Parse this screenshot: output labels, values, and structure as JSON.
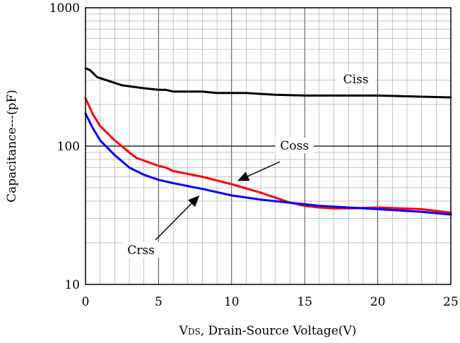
{
  "chart_data": {
    "type": "line",
    "xlabel_prefix": "V",
    "xlabel_sub": "DS",
    "xlabel_rest": ", Drain-Source Voltage(V)",
    "ylabel": "Capacitance---(pF)",
    "xlim": [
      0,
      25
    ],
    "ylim": [
      10,
      1000
    ],
    "yscale": "log",
    "grid": true,
    "x_ticks": [
      "0",
      "5",
      "10",
      "15",
      "20",
      "25"
    ],
    "y_ticks": [
      "10",
      "100",
      "1000"
    ],
    "series": [
      {
        "name": "Ciss",
        "color": "#000000",
        "x": [
          0,
          0.3,
          0.8,
          1.5,
          2.5,
          4,
          5,
          5.5,
          6,
          8,
          9,
          11,
          13,
          15,
          20,
          25
        ],
        "y": [
          365,
          355,
          315,
          298,
          275,
          262,
          255,
          255,
          248,
          248,
          242,
          242,
          235,
          232,
          232,
          225
        ]
      },
      {
        "name": "Coss",
        "color": "#ff0000",
        "x": [
          0,
          0.5,
          1,
          2,
          3,
          3.5,
          5,
          5.5,
          6,
          8,
          10,
          12,
          14,
          15,
          16,
          17,
          18,
          20,
          23,
          25
        ],
        "y": [
          222,
          170,
          140,
          110,
          90,
          82,
          72,
          70,
          66,
          60,
          53,
          46,
          39,
          37,
          36,
          35.5,
          35.5,
          36,
          35,
          33
        ]
      },
      {
        "name": "Crss",
        "color": "#0000ff",
        "x": [
          0,
          0.5,
          1,
          2,
          3,
          4,
          5,
          6,
          8,
          10,
          12,
          14,
          16,
          18,
          20,
          23,
          25
        ],
        "y": [
          172,
          135,
          110,
          86,
          70,
          62,
          57,
          54,
          49,
          44,
          41,
          39,
          37,
          36,
          35,
          33.5,
          32
        ]
      }
    ],
    "annotations": [
      {
        "text": "Ciss",
        "x": 18.5,
        "y": 302
      },
      {
        "text": "Coss",
        "x": 14.3,
        "y": 100
      },
      {
        "text": "Crss",
        "x": 3.8,
        "y": 17.6
      }
    ],
    "arrows": [
      {
        "from": [
          13.3,
          77
        ],
        "to": [
          10.4,
          56
        ]
      },
      {
        "from": [
          4.8,
          21
        ],
        "to": [
          7.8,
          44
        ]
      }
    ]
  }
}
